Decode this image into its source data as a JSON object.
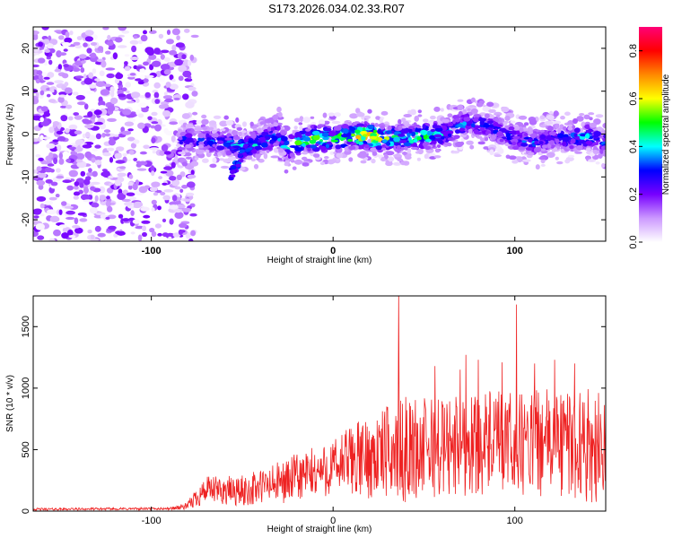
{
  "title": "S173.2026.034.02.33.R07",
  "chart_data": [
    {
      "type": "heatmap",
      "name": "spectrogram",
      "xlabel": "Height of straight line (km)",
      "ylabel": "Frequency (Hz)",
      "xlim": [
        -165,
        150
      ],
      "ylim": [
        -25,
        25
      ],
      "x_ticks": [
        -100,
        0,
        100
      ],
      "y_ticks": [
        -20,
        -10,
        0,
        10,
        20
      ],
      "colorbar": {
        "label": "Normalized spectral amplitude",
        "range": [
          0.0,
          0.9
        ],
        "ticks": [
          0.0,
          0.2,
          0.4,
          0.6,
          0.8
        ],
        "tick_labels": [
          "0.0",
          "0.2",
          "0.4",
          "0.6",
          "0.8"
        ],
        "colors": [
          "#ffffff",
          "#cc99ff",
          "#7700ff",
          "#0000ff",
          "#00ffff",
          "#00ff00",
          "#ffff00",
          "#ff8800",
          "#ff0000",
          "#ff0077"
        ]
      },
      "noise_region": {
        "x_from": -165,
        "x_to": -82,
        "amplitude": 0.2
      },
      "ridge": {
        "x": [
          -85,
          -80,
          -70,
          -60,
          -50,
          -40,
          -30,
          -25,
          -20,
          -10,
          0,
          10,
          20,
          30,
          40,
          50,
          60,
          70,
          75,
          80,
          90,
          100,
          110,
          120,
          130,
          140,
          150
        ],
        "freq": [
          -2,
          -1,
          -1.5,
          -2,
          -3,
          -2,
          0,
          -4,
          -2,
          -1,
          -1,
          -0.5,
          -0.5,
          -1,
          -1,
          -0.5,
          0,
          2,
          3,
          2,
          1,
          -1,
          -2,
          -1,
          -1,
          -0.5,
          -2
        ],
        "peak_amplitude": [
          0.3,
          0.4,
          0.35,
          0.4,
          0.5,
          0.45,
          0.4,
          0.5,
          0.55,
          0.7,
          0.6,
          0.65,
          0.85,
          0.6,
          0.55,
          0.6,
          0.5,
          0.45,
          0.4,
          0.45,
          0.4,
          0.35,
          0.4,
          0.35,
          0.4,
          0.45,
          0.4
        ],
        "spread_hz": 3
      }
    },
    {
      "type": "line",
      "name": "snr",
      "xlabel": "Height of straight line (km)",
      "ylabel": "SNR (10 * v/v)",
      "xlim": [
        -165,
        150
      ],
      "ylim": [
        0,
        1750
      ],
      "x_ticks": [
        -100,
        0,
        100
      ],
      "y_ticks": [
        0,
        500,
        1000,
        1500
      ],
      "color": "#ee2222",
      "envelope": {
        "x": [
          -165,
          -90,
          -80,
          -75,
          -70,
          -50,
          -30,
          -20,
          0,
          10,
          20,
          30,
          40,
          60,
          80,
          100,
          120,
          150
        ],
        "mean": [
          15,
          20,
          40,
          120,
          170,
          160,
          230,
          270,
          350,
          420,
          430,
          480,
          500,
          520,
          560,
          540,
          560,
          520
        ],
        "spread": [
          10,
          10,
          30,
          90,
          110,
          130,
          170,
          200,
          230,
          300,
          330,
          380,
          430,
          420,
          430,
          420,
          440,
          470
        ]
      },
      "spikes": [
        {
          "x": 36,
          "y": 1760
        },
        {
          "x": 101,
          "y": 1680
        },
        {
          "x": 56,
          "y": 1180
        },
        {
          "x": 73,
          "y": 1270
        },
        {
          "x": 93,
          "y": 1210
        },
        {
          "x": 111,
          "y": 1200
        },
        {
          "x": 122,
          "y": 1230
        },
        {
          "x": 133,
          "y": 1200
        },
        {
          "x": 150,
          "y": 960
        },
        {
          "x": 70,
          "y": 1150
        },
        {
          "x": 80,
          "y": 1230
        }
      ]
    }
  ]
}
